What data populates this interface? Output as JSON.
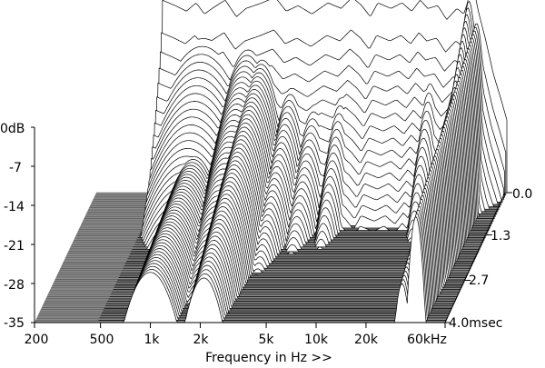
{
  "chart_data": {
    "type": "waterfall-3d",
    "title": "",
    "xlabel": "Frequency in Hz >>",
    "ylabel": "",
    "zlabel": "",
    "x_scale": "log",
    "x_range_hz": [
      200,
      60000
    ],
    "x_tick_labels": [
      "200",
      "500",
      "1k",
      "2k",
      "5k",
      "10k",
      "20k",
      "60kHz"
    ],
    "x_tick_values_hz": [
      200,
      500,
      1000,
      2000,
      5000,
      10000,
      20000,
      60000
    ],
    "y_range_db": [
      -35,
      0
    ],
    "y_tick_labels": [
      "0dB",
      "-7",
      "-14",
      "-21",
      "-28",
      "-35"
    ],
    "y_tick_values_db": [
      0,
      -7,
      -14,
      -21,
      -28,
      -35
    ],
    "time_range_ms": [
      0,
      4.0
    ],
    "time_tick_labels": [
      "0.0",
      "1.3",
      "2.7",
      "4.0msec"
    ],
    "time_tick_values_ms": [
      0,
      1.3,
      2.7,
      4.0
    ],
    "slice_count": 56,
    "floor_color": "#8c8c8c",
    "floor_line_color": "#4a4a4a",
    "surface_fill": "#ffffff",
    "surface_line": "#000000",
    "initial_response_db": [
      [
        500,
        -0.5
      ],
      [
        600,
        -1.5
      ],
      [
        700,
        -2.5
      ],
      [
        800,
        -1.0
      ],
      [
        900,
        -3.0
      ],
      [
        1000,
        -2.0
      ],
      [
        1200,
        -0.5
      ],
      [
        1400,
        -3.5
      ],
      [
        1600,
        -2.0
      ],
      [
        2000,
        -1.0
      ],
      [
        2400,
        0.0
      ],
      [
        2800,
        -2.5
      ],
      [
        3300,
        -1.5
      ],
      [
        4000,
        -3.0
      ],
      [
        5000,
        -1.0
      ],
      [
        6000,
        -2.0
      ],
      [
        7000,
        0.0
      ],
      [
        8000,
        -1.5
      ],
      [
        9000,
        -3.5
      ],
      [
        10000,
        -1.0
      ],
      [
        12000,
        -2.0
      ],
      [
        14000,
        -1.0
      ],
      [
        16000,
        -2.5
      ],
      [
        18000,
        -0.5
      ],
      [
        20000,
        -2.0
      ],
      [
        23000,
        -1.5
      ],
      [
        26000,
        -4.0
      ],
      [
        30000,
        -2.0
      ],
      [
        33000,
        -3.0
      ],
      [
        36000,
        0.5
      ],
      [
        38000,
        1.5
      ],
      [
        40000,
        -2.0
      ],
      [
        45000,
        -8.0
      ],
      [
        50000,
        -14.0
      ],
      [
        55000,
        -18.0
      ],
      [
        60000,
        -22.0
      ]
    ],
    "resonance_peaks": [
      {
        "freq_hz": 900,
        "level_db": -6.0,
        "width": 0.3,
        "decay": 0.55
      },
      {
        "freq_hz": 1000,
        "level_db": -20.0,
        "width": 0.2,
        "decay": 0.95
      },
      {
        "freq_hz": 1700,
        "level_db": -7.5,
        "width": 0.18,
        "decay": 0.75
      },
      {
        "freq_hz": 2100,
        "level_db": -9.0,
        "width": 0.15,
        "decay": 0.85
      },
      {
        "freq_hz": 3200,
        "level_db": -12.0,
        "width": 0.12,
        "decay": 0.7
      },
      {
        "freq_hz": 4500,
        "level_db": -13.0,
        "width": 0.12,
        "decay": 0.62
      },
      {
        "freq_hz": 6500,
        "level_db": -11.0,
        "width": 0.1,
        "decay": 0.55
      },
      {
        "freq_hz": 22000,
        "level_db": -9.0,
        "width": 0.08,
        "decay": 0.45
      },
      {
        "freq_hz": 33000,
        "level_db": -10.0,
        "width": 0.06,
        "decay": 0.85
      },
      {
        "freq_hz": 36000,
        "level_db": 0.5,
        "width": 0.05,
        "decay": 0.65
      },
      {
        "freq_hz": 40000,
        "level_db": -4.0,
        "width": 0.05,
        "decay": 0.9
      }
    ]
  }
}
